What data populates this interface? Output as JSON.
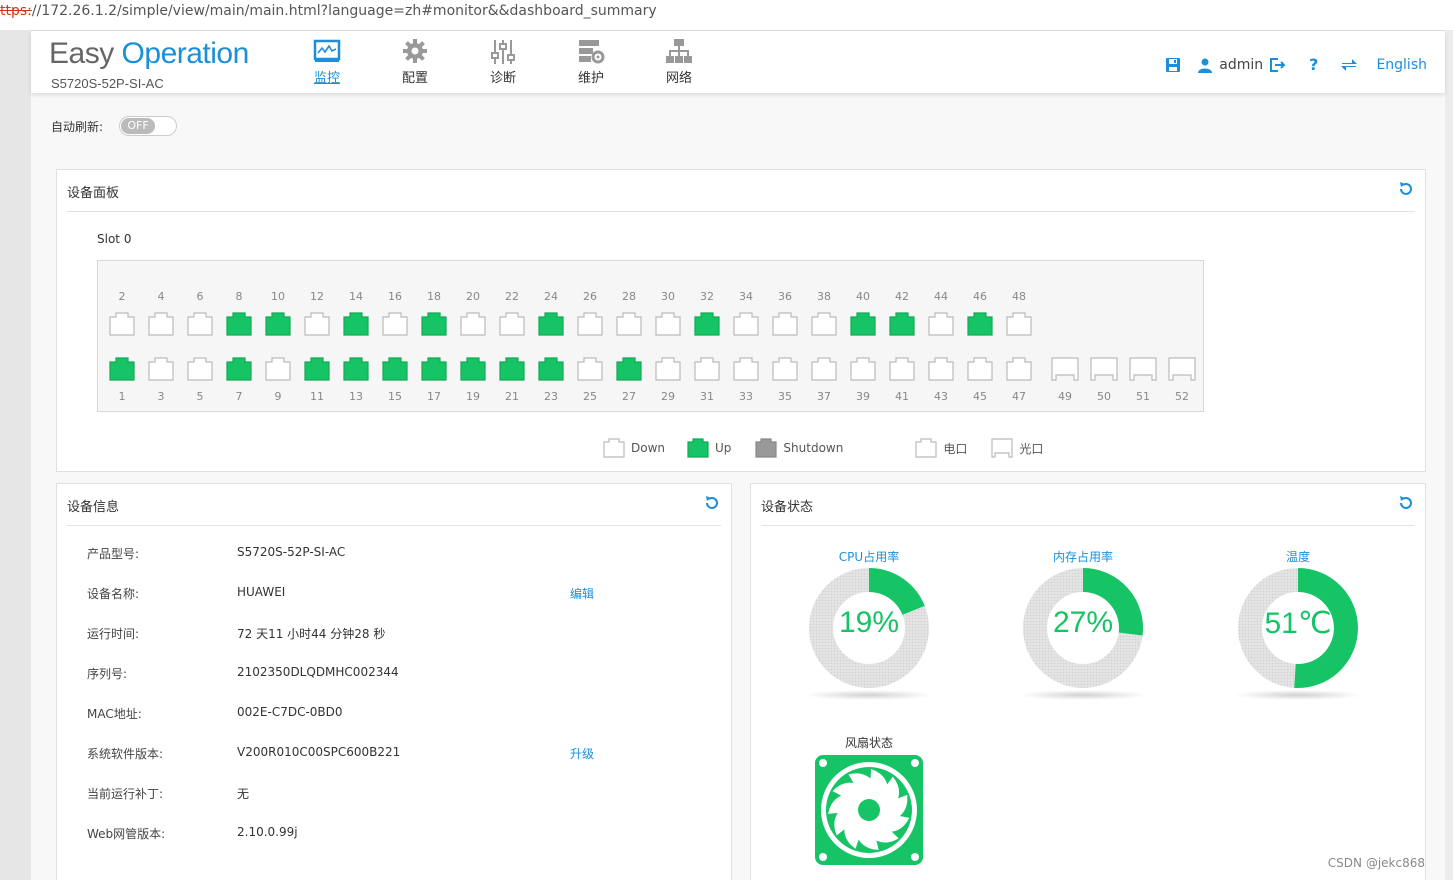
{
  "browser": {
    "url_scheme": "ttps:",
    "url_rest": "//172.26.1.2/simple/view/main/main.html?language=zh#monitor&&dashboard_summary"
  },
  "header": {
    "logo_easy": "Easy",
    "logo_operation": "Operation",
    "model": "S5720S-52P-SI-AC",
    "nav": [
      {
        "label": "监控",
        "icon": "monitor-icon",
        "active": true
      },
      {
        "label": "配置",
        "icon": "gear-icon",
        "active": false
      },
      {
        "label": "诊断",
        "icon": "sliders-icon",
        "active": false
      },
      {
        "label": "维护",
        "icon": "maintenance-icon",
        "active": false
      },
      {
        "label": "网络",
        "icon": "network-icon",
        "active": false
      }
    ],
    "user": "admin",
    "language": "English",
    "help": "?"
  },
  "autorefresh": {
    "label": "自动刷新:",
    "state": "OFF"
  },
  "device_panel": {
    "title": "设备面板",
    "slot": "Slot 0",
    "top_row": [
      {
        "n": "2",
        "up": false
      },
      {
        "n": "4",
        "up": false
      },
      {
        "n": "6",
        "up": false
      },
      {
        "n": "8",
        "up": true
      },
      {
        "n": "10",
        "up": true
      },
      {
        "n": "12",
        "up": false
      },
      {
        "n": "14",
        "up": true
      },
      {
        "n": "16",
        "up": false
      },
      {
        "n": "18",
        "up": true
      },
      {
        "n": "20",
        "up": false
      },
      {
        "n": "22",
        "up": false
      },
      {
        "n": "24",
        "up": true
      },
      {
        "n": "26",
        "up": false
      },
      {
        "n": "28",
        "up": false
      },
      {
        "n": "30",
        "up": false
      },
      {
        "n": "32",
        "up": true
      },
      {
        "n": "34",
        "up": false
      },
      {
        "n": "36",
        "up": false
      },
      {
        "n": "38",
        "up": false
      },
      {
        "n": "40",
        "up": true
      },
      {
        "n": "42",
        "up": true
      },
      {
        "n": "44",
        "up": false
      },
      {
        "n": "46",
        "up": true
      },
      {
        "n": "48",
        "up": false
      }
    ],
    "bottom_row": [
      {
        "n": "1",
        "up": true
      },
      {
        "n": "3",
        "up": false
      },
      {
        "n": "5",
        "up": false
      },
      {
        "n": "7",
        "up": true
      },
      {
        "n": "9",
        "up": false
      },
      {
        "n": "11",
        "up": true
      },
      {
        "n": "13",
        "up": true
      },
      {
        "n": "15",
        "up": true
      },
      {
        "n": "17",
        "up": true
      },
      {
        "n": "19",
        "up": true
      },
      {
        "n": "21",
        "up": true
      },
      {
        "n": "23",
        "up": true
      },
      {
        "n": "25",
        "up": false
      },
      {
        "n": "27",
        "up": true
      },
      {
        "n": "29",
        "up": false
      },
      {
        "n": "31",
        "up": false
      },
      {
        "n": "33",
        "up": false
      },
      {
        "n": "35",
        "up": false
      },
      {
        "n": "37",
        "up": false
      },
      {
        "n": "39",
        "up": false
      },
      {
        "n": "41",
        "up": false
      },
      {
        "n": "43",
        "up": false
      },
      {
        "n": "45",
        "up": false
      },
      {
        "n": "47",
        "up": false
      }
    ],
    "optical_ports": [
      "49",
      "50",
      "51",
      "52"
    ],
    "legend": {
      "down": "Down",
      "up": "Up",
      "shutdown": "Shutdown",
      "electrical": "电口",
      "optical": "光口"
    }
  },
  "device_info": {
    "title": "设备信息",
    "rows": [
      {
        "key": "产品型号:",
        "value": "S5720S-52P-SI-AC",
        "link": ""
      },
      {
        "key": "设备名称:",
        "value": "HUAWEI",
        "link": "编辑"
      },
      {
        "key": "运行时间:",
        "value": "72 天11 小时44 分钟28 秒",
        "link": ""
      },
      {
        "key": "序列号:",
        "value": "2102350DLQDMHC002344",
        "link": ""
      },
      {
        "key": "MAC地址:",
        "value": "002E-C7DC-0BD0",
        "link": ""
      },
      {
        "key": "系统软件版本:",
        "value": "V200R010C00SPC600B221",
        "link": "升级"
      },
      {
        "key": "当前运行补丁:",
        "value": "无",
        "link": ""
      },
      {
        "key": "Web网管版本:",
        "value": "2.10.0.99j",
        "link": ""
      }
    ]
  },
  "device_status": {
    "title": "设备状态",
    "gauges": [
      {
        "label": "CPU占用率",
        "display": "19%",
        "percent": 19
      },
      {
        "label": "内存占用率",
        "display": "27%",
        "percent": 27
      },
      {
        "label": "温度",
        "display": "51℃",
        "percent": 51
      }
    ],
    "fan_label": "风扇状态"
  },
  "colors": {
    "accent": "#1b8fd9",
    "port_up": "#16c466",
    "port_down": "#ffffff",
    "port_shutdown": "#999999"
  },
  "watermark": "CSDN @jekc868"
}
